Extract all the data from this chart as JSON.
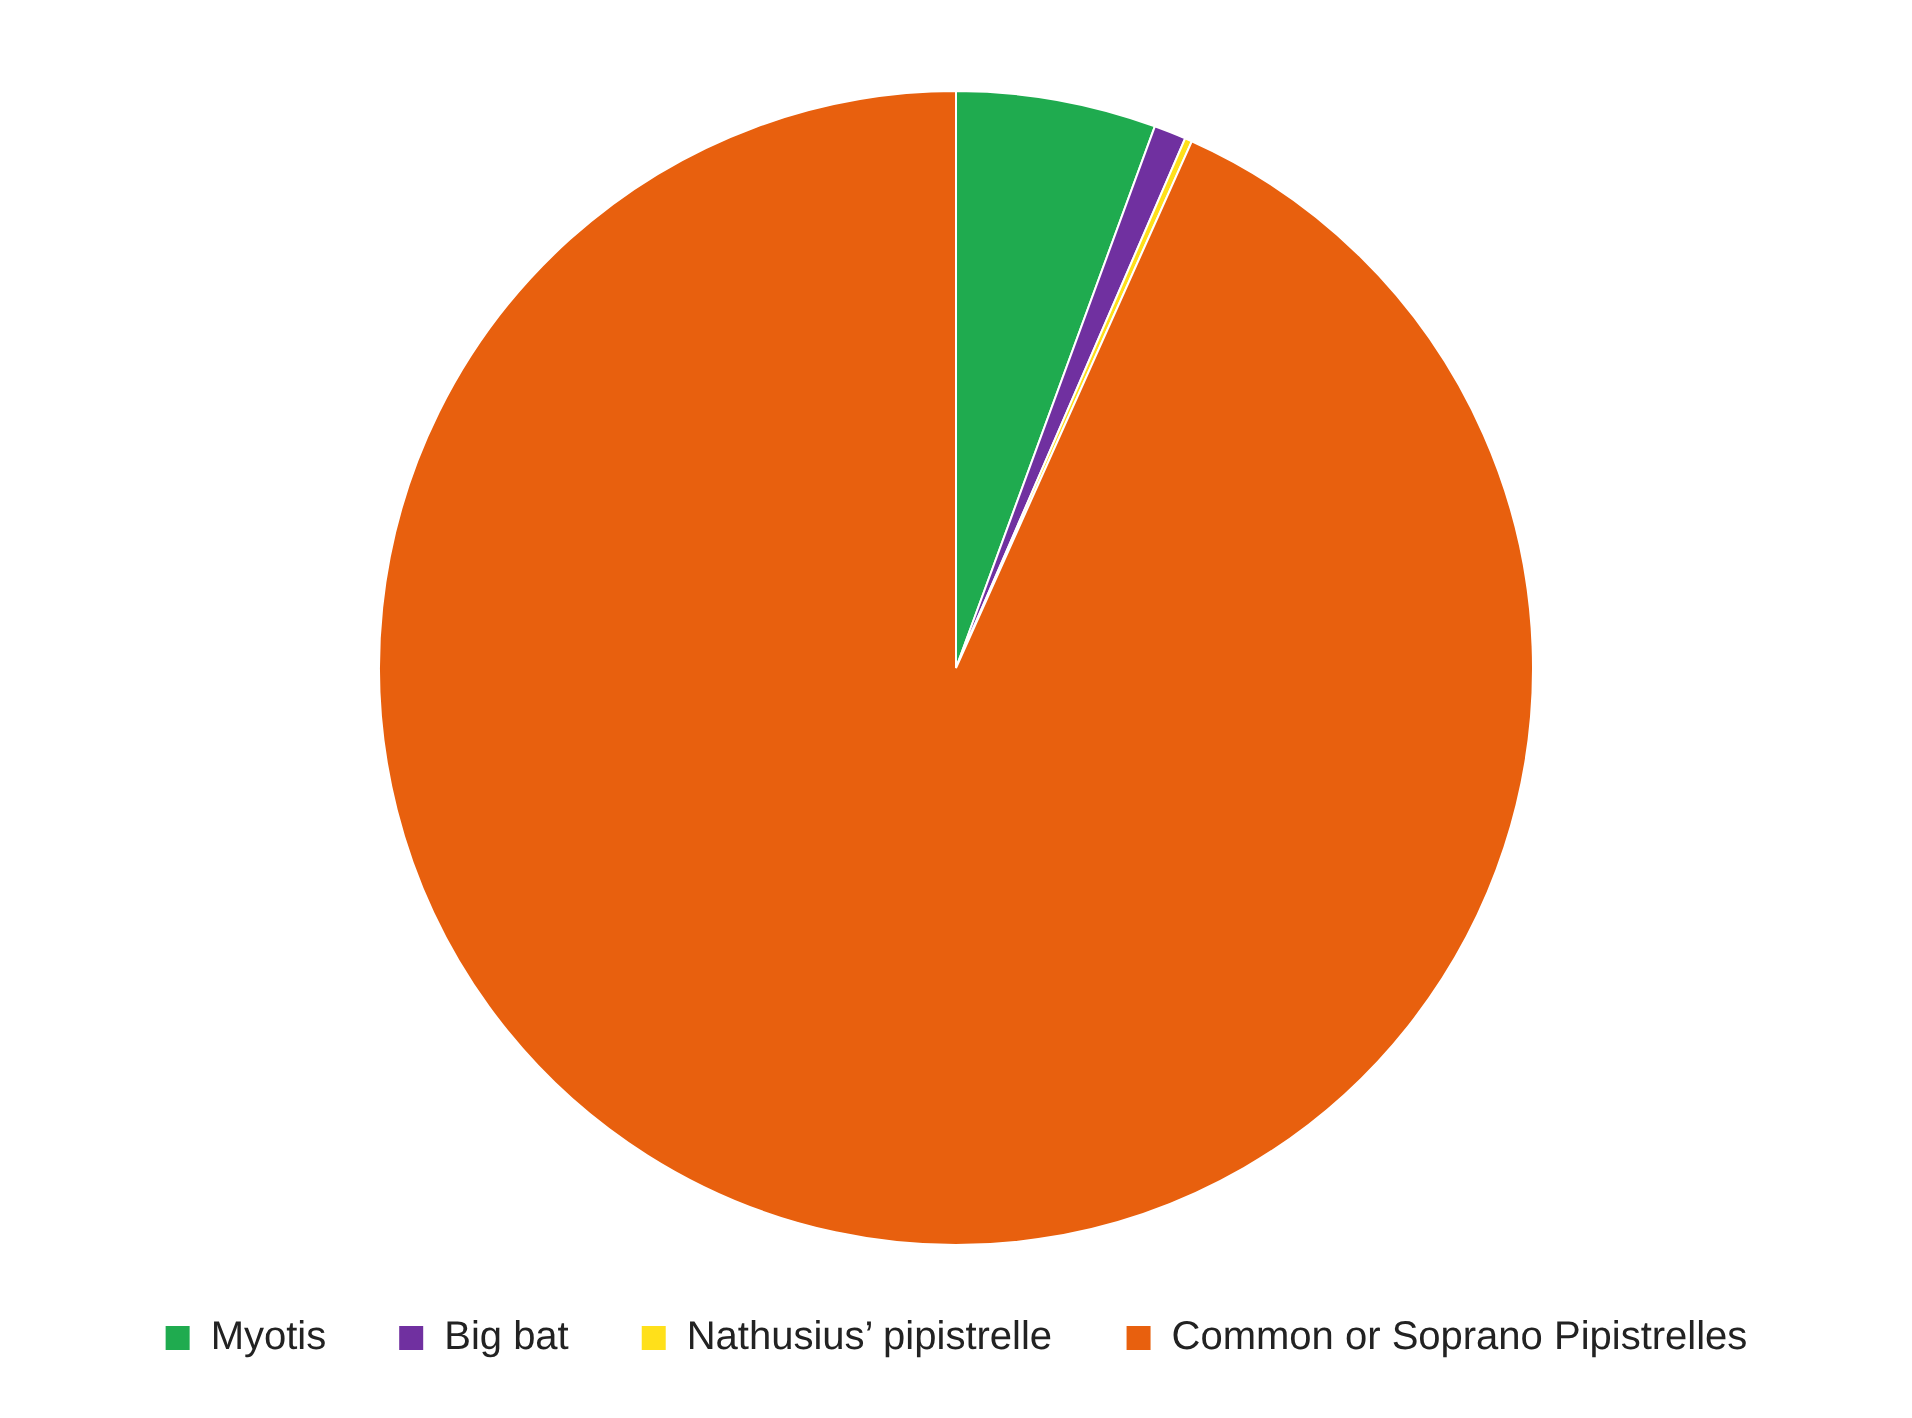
{
  "chart_data": {
    "type": "pie",
    "categories": [
      "Myotis",
      "Big bat",
      "Nathusius’ pipistrelle",
      "Common or Soprano Pipistrelles"
    ],
    "values": [
      5.6,
      0.9,
      0.2,
      93.3
    ],
    "colors": [
      "#1fab4f",
      "#7030a0",
      "#ffe01a",
      "#e8600e"
    ],
    "legend": "bottom"
  }
}
